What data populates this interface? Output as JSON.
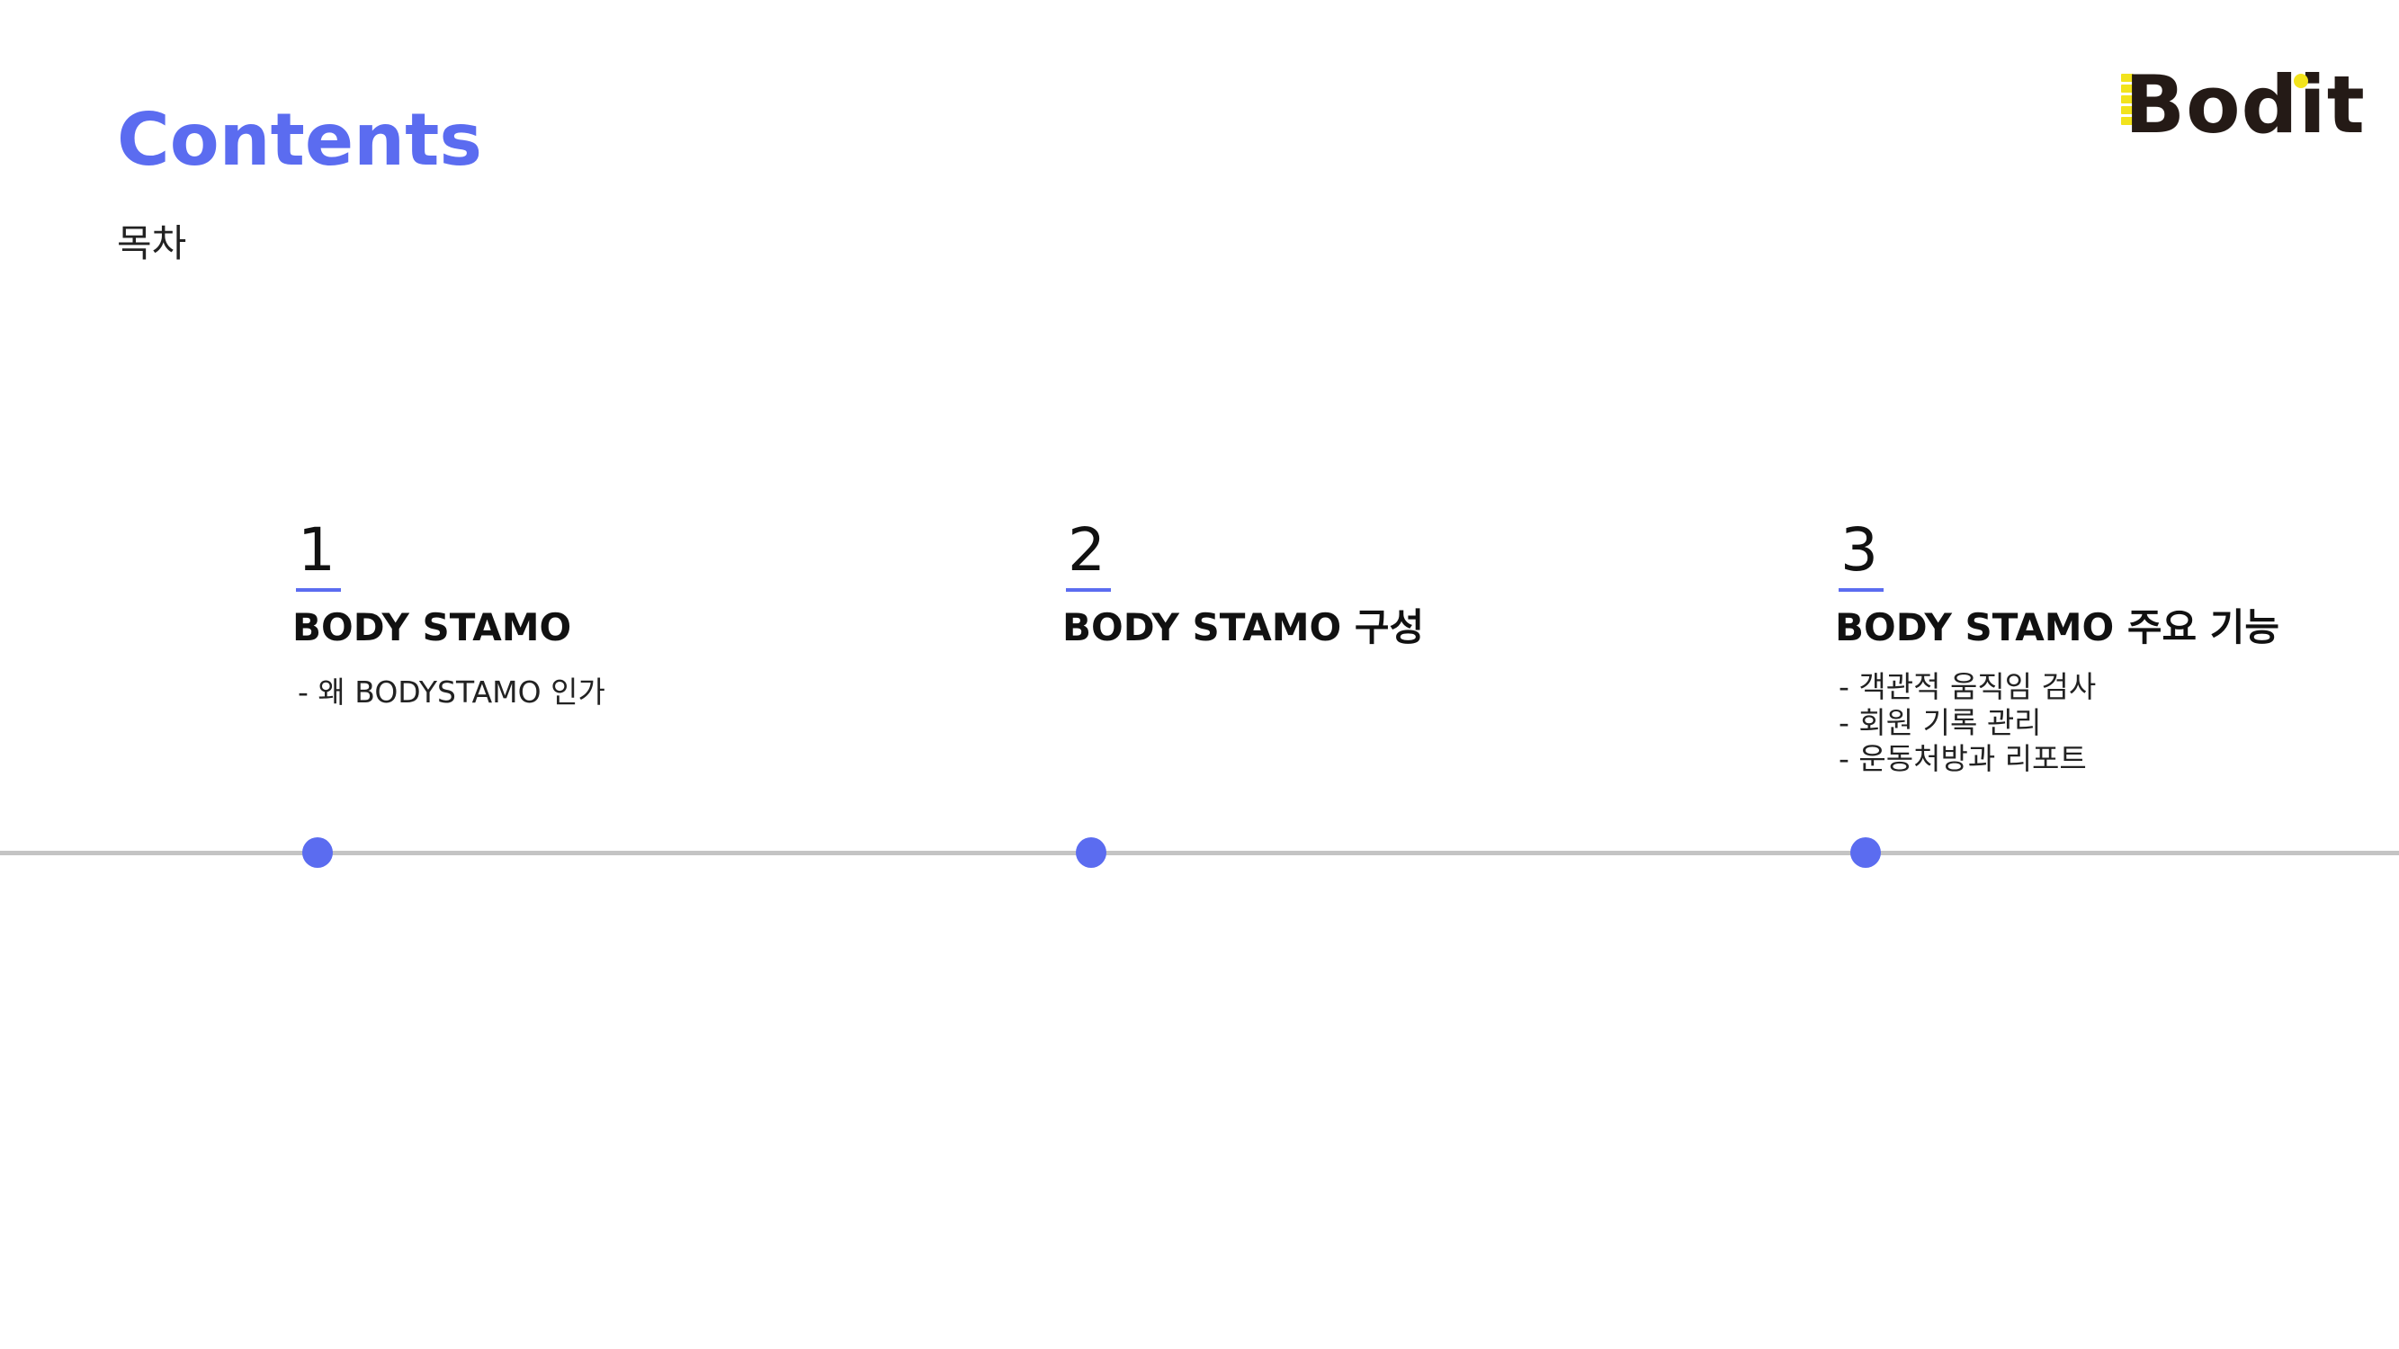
{
  "header": {
    "title": "Contents",
    "subtitle": "목차"
  },
  "logo": {
    "text": "Bodit",
    "brand_color": "#241a16",
    "accent_color": "#f2e31c"
  },
  "colors": {
    "accent": "#5b6cf0",
    "timeline": "#c4c4c4"
  },
  "sections": [
    {
      "number": "1",
      "title": "BODY STAMO",
      "items": [
        "왜 BODYSTAMO 인가"
      ]
    },
    {
      "number": "2",
      "title": "BODY STAMO 구성",
      "items": []
    },
    {
      "number": "3",
      "title": "BODY STAMO 주요 기능",
      "items": [
        "객관적 움직임 검사",
        "회원 기록 관리",
        "운동처방과 리포트"
      ]
    }
  ]
}
